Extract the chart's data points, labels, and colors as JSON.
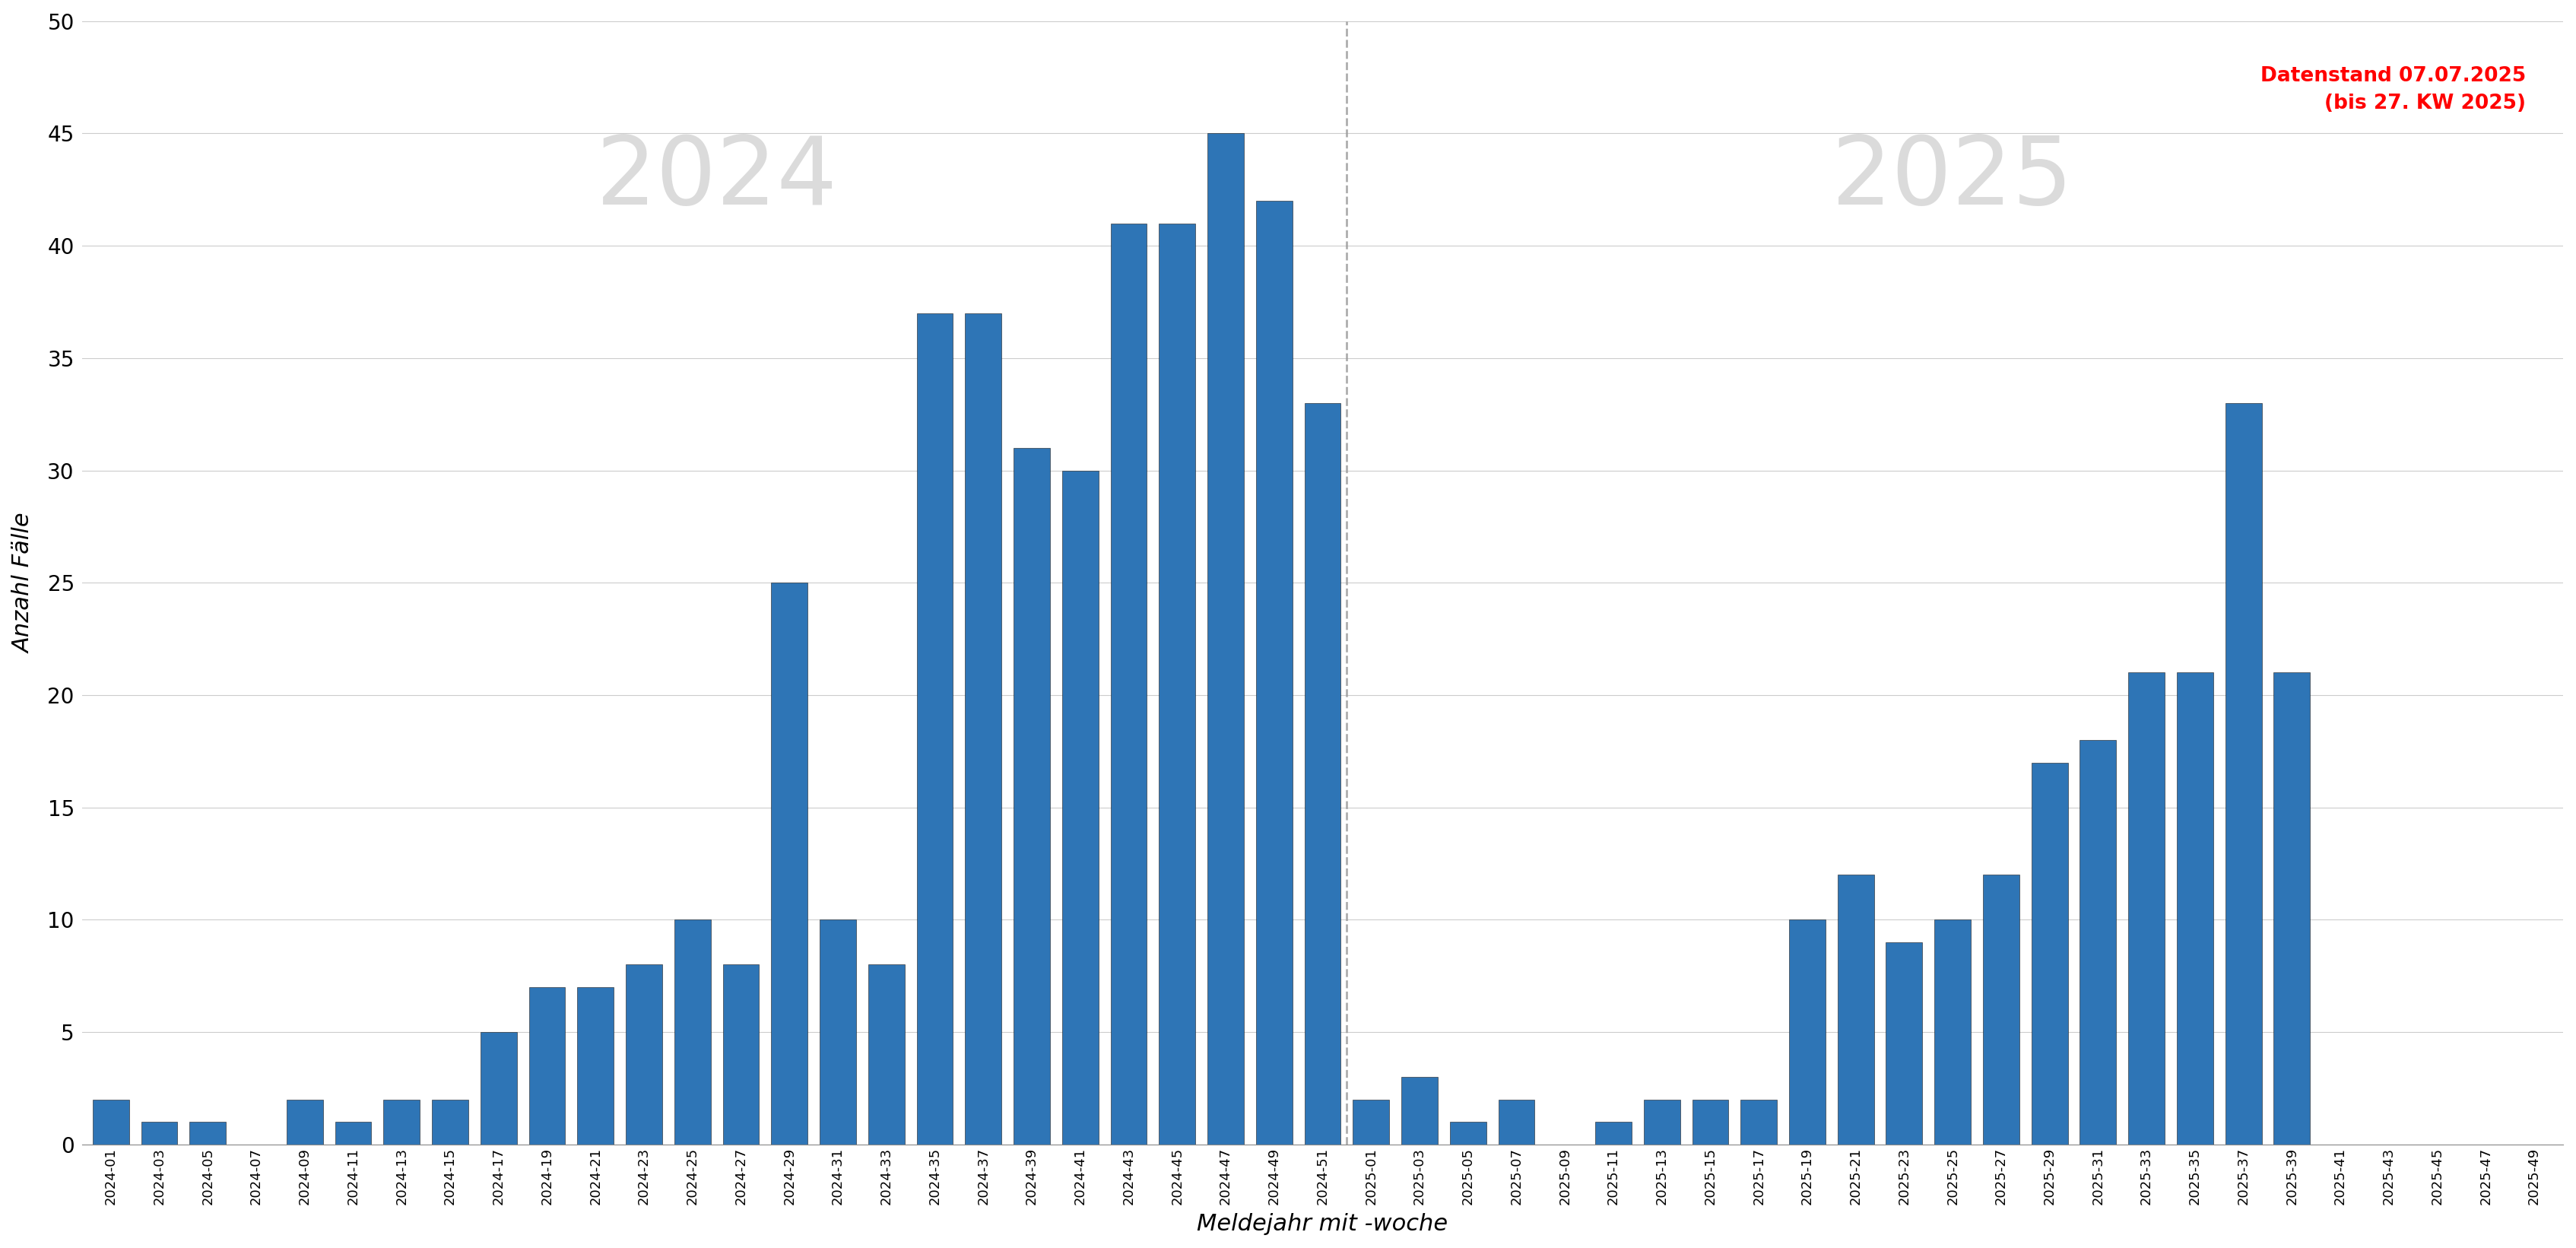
{
  "categories_2024": [
    "2024-01",
    "2024-03",
    "2024-05",
    "2024-07",
    "2024-09",
    "2024-11",
    "2024-13",
    "2024-15",
    "2024-17",
    "2024-19",
    "2024-21",
    "2024-23",
    "2024-25",
    "2024-27",
    "2024-29",
    "2024-31",
    "2024-33",
    "2024-35",
    "2024-37",
    "2024-39",
    "2024-41",
    "2024-43",
    "2024-45",
    "2024-47",
    "2024-49",
    "2024-51"
  ],
  "values_2024": [
    2,
    1,
    1,
    0,
    2,
    1,
    2,
    2,
    5,
    7,
    7,
    8,
    10,
    8,
    25,
    10,
    8,
    37,
    37,
    31,
    30,
    41,
    41,
    45,
    42,
    33
  ],
  "categories_2025": [
    "2025-01",
    "2025-03",
    "2025-05",
    "2025-07",
    "2025-09",
    "2025-11",
    "2025-13",
    "2025-15",
    "2025-17",
    "2025-19",
    "2025-21",
    "2025-23",
    "2025-25",
    "2025-27",
    "2025-29",
    "2025-31",
    "2025-33",
    "2025-35",
    "2025-37",
    "2025-39",
    "2025-41",
    "2025-43",
    "2025-45",
    "2025-47",
    "2025-49"
  ],
  "values_2025": [
    2,
    3,
    1,
    2,
    0,
    1,
    2,
    2,
    2,
    10,
    12,
    9,
    10,
    12,
    17,
    18,
    21,
    21,
    33,
    21,
    0,
    0,
    0,
    0,
    0
  ],
  "bar_color": "#2E75B6",
  "bar_edge_color": "#1a1a1a",
  "background_color": "#ffffff",
  "ylabel": "Anzahl Fälle",
  "xlabel": "Meldejahr mit -woche",
  "ylim_max": 50,
  "yticks": [
    0,
    5,
    10,
    15,
    20,
    25,
    30,
    35,
    40,
    45,
    50
  ],
  "annotation_2024": "2024",
  "annotation_2025": "2025",
  "datenstand_line1": "Datenstand 07.07.2025",
  "datenstand_line2": "(bis 27. KW 2025)",
  "grid_color": "#cccccc",
  "year_label_color": "#cccccc",
  "datenstand_color": "#ff0000"
}
